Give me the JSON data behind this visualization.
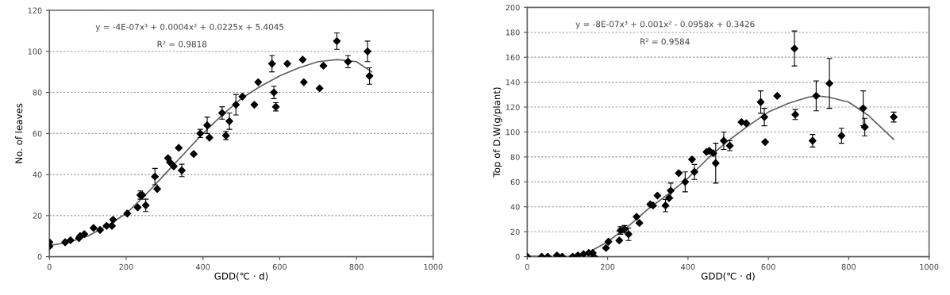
{
  "chart_data": [
    {
      "type": "scatter",
      "xlabel": "GDD(℃ · d)",
      "ylabel": "No. of leaves",
      "xlim": [
        0,
        1000
      ],
      "ylim": [
        0,
        120
      ],
      "xticks": [
        0,
        200,
        400,
        600,
        800,
        1000
      ],
      "yticks": [
        0,
        20,
        40,
        60,
        80,
        100,
        120
      ],
      "grid": "y",
      "annotations": [
        "y = -4E-07x³ + 0.0004x² + 0.0225x + 5.4045",
        "R² = 0.9818"
      ],
      "series": [
        {
          "color": "#000000",
          "marker": "diamond",
          "x": [
            0,
            0,
            41,
            55,
            77,
            80,
            91,
            115,
            132,
            149,
            163,
            166,
            203,
            230,
            237,
            242,
            251,
            275,
            281,
            309,
            314,
            324,
            337,
            345,
            376,
            393,
            411,
            417,
            450,
            460,
            469,
            486,
            503,
            534,
            544,
            580,
            585,
            590,
            620,
            660,
            663,
            704,
            714,
            749,
            778,
            829,
            834
          ],
          "values": [
            7,
            5,
            7,
            8,
            9,
            10,
            11,
            14,
            13,
            15,
            15,
            18,
            21,
            24,
            30,
            30,
            25,
            39,
            33,
            48,
            46,
            44,
            53,
            42,
            50,
            60,
            64,
            58,
            70,
            59,
            66,
            74,
            78,
            74,
            85,
            94,
            80,
            73,
            94,
            96,
            85,
            82,
            93,
            105,
            95,
            100,
            88
          ],
          "errors": [
            null,
            null,
            null,
            null,
            null,
            null,
            null,
            null,
            null,
            null,
            null,
            null,
            null,
            null,
            2,
            null,
            3,
            4,
            null,
            null,
            null,
            null,
            null,
            3,
            null,
            2,
            4,
            null,
            3,
            2,
            4,
            5,
            null,
            null,
            null,
            4,
            3,
            2,
            null,
            null,
            null,
            null,
            null,
            4,
            3,
            5,
            4
          ]
        },
        {
          "type": "line",
          "color": "#606060",
          "marker": "none",
          "line_style": "solid",
          "x": [
            0,
            50,
            100,
            150,
            200,
            250,
            300,
            350,
            400,
            450,
            500,
            550,
            600,
            650,
            700,
            750,
            800,
            840
          ],
          "values": [
            5.4,
            7,
            10,
            15,
            21,
            30,
            40,
            50,
            60,
            69,
            77,
            83,
            88,
            92,
            95,
            96,
            95,
            90
          ]
        }
      ]
    },
    {
      "type": "scatter",
      "xlabel": "GDD(℃ · d)",
      "ylabel": "Top of D.W(g/plant)",
      "xlim": [
        0,
        1000
      ],
      "ylim": [
        0,
        200
      ],
      "xticks": [
        0,
        200,
        400,
        600,
        800,
        1000
      ],
      "yticks": [
        0,
        20,
        40,
        60,
        80,
        100,
        120,
        140,
        160,
        180,
        200
      ],
      "grid": "y",
      "annotations": [
        "y = -8E-07x³ + 0.001x² - 0.0958x + 0.3426",
        "R² = 0.9584"
      ],
      "series": [
        {
          "color": "#000000",
          "marker": "diamond",
          "x": [
            0,
            36,
            51,
            74,
            87,
            113,
            126,
            140,
            153,
            163,
            166,
            196,
            202,
            229,
            232,
            242,
            252,
            272,
            279,
            306,
            313,
            324,
            344,
            353,
            357,
            377,
            393,
            410,
            416,
            446,
            453,
            463,
            469,
            489,
            504,
            533,
            545,
            581,
            590,
            592,
            622,
            665,
            667,
            710,
            719,
            752,
            782,
            836,
            840,
            912
          ],
          "values": [
            0,
            0,
            0,
            1,
            0,
            0,
            1,
            2,
            3,
            3,
            0,
            7,
            12,
            13,
            21,
            22,
            18,
            32,
            27,
            42,
            41,
            49,
            41,
            47,
            53,
            67,
            60,
            78,
            68,
            84,
            85,
            83,
            75,
            93,
            89,
            108,
            107,
            124,
            112,
            92,
            129,
            167,
            114,
            93,
            129,
            139,
            97,
            119,
            104,
            112
          ],
          "errors": [
            null,
            null,
            null,
            null,
            null,
            null,
            null,
            null,
            null,
            null,
            null,
            null,
            null,
            null,
            3,
            3,
            5,
            null,
            null,
            null,
            null,
            null,
            5,
            null,
            6,
            null,
            8,
            null,
            6,
            null,
            null,
            null,
            16,
            7,
            4,
            null,
            null,
            9,
            7,
            null,
            null,
            14,
            4,
            5,
            12,
            20,
            6,
            14,
            7,
            4
          ]
        },
        {
          "type": "line",
          "color": "#606060",
          "marker": "none",
          "line_style": "solid",
          "x": [
            0,
            100,
            150,
            200,
            250,
            300,
            350,
            400,
            450,
            500,
            550,
            600,
            650,
            700,
            720,
            750,
            800,
            850,
            912
          ],
          "values": [
            0.3,
            0,
            3,
            12,
            24,
            38,
            50,
            63,
            79,
            93,
            105,
            116,
            123,
            128,
            129,
            128,
            124,
            113,
            94
          ]
        }
      ]
    }
  ]
}
